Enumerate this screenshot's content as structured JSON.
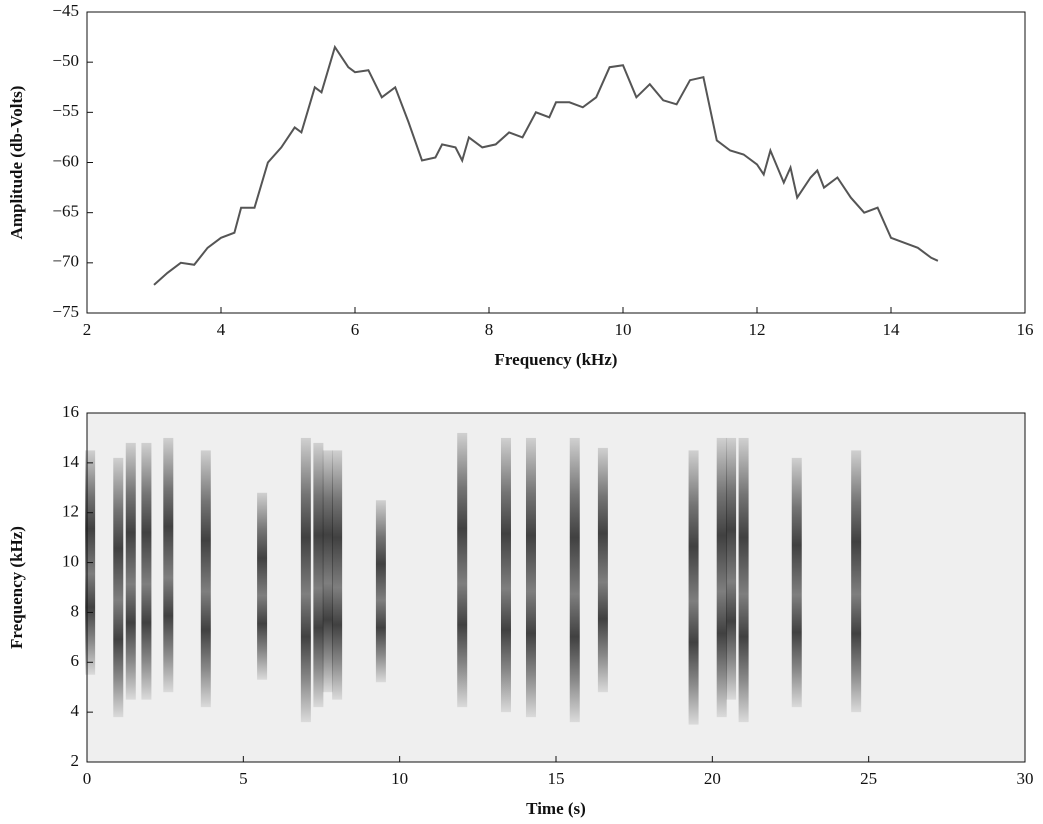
{
  "chart_data": [
    {
      "type": "line",
      "xlabel": "Frequency (kHz)",
      "ylabel": "Amplitude (db-Volts)",
      "color": "#555555",
      "x": [
        3.0,
        3.2,
        3.4,
        3.6,
        3.8,
        4.0,
        4.2,
        4.3,
        4.5,
        4.7,
        4.9,
        5.1,
        5.2,
        5.4,
        5.5,
        5.7,
        5.9,
        6.0,
        6.2,
        6.4,
        6.6,
        6.8,
        7.0,
        7.2,
        7.3,
        7.5,
        7.6,
        7.7,
        7.9,
        8.1,
        8.3,
        8.5,
        8.7,
        8.9,
        9.0,
        9.2,
        9.4,
        9.6,
        9.8,
        10.0,
        10.2,
        10.4,
        10.6,
        10.8,
        11.0,
        11.2,
        11.4,
        11.6,
        11.8,
        12.0,
        12.1,
        12.2,
        12.4,
        12.5,
        12.6,
        12.8,
        12.9,
        13.0,
        13.2,
        13.4,
        13.6,
        13.8,
        14.0,
        14.2,
        14.4,
        14.6,
        14.7
      ],
      "values": [
        -72.2,
        -71,
        -70,
        -70.2,
        -68.5,
        -67.5,
        -67,
        -64.5,
        -64.5,
        -60,
        -58.5,
        -56.5,
        -57,
        -52.5,
        -53,
        -48.5,
        -50.5,
        -51,
        -50.8,
        -53.5,
        -52.5,
        -56,
        -59.8,
        -59.5,
        -58.2,
        -58.5,
        -59.8,
        -57.5,
        -58.5,
        -58.2,
        -57,
        -57.5,
        -55,
        -55.5,
        -54,
        -54,
        -54.5,
        -53.5,
        -50.5,
        -50.3,
        -53.5,
        -52.2,
        -53.8,
        -54.2,
        -51.8,
        -51.5,
        -57.8,
        -58.8,
        -59.2,
        -60.2,
        -61.2,
        -58.8,
        -62,
        -60.5,
        -63.5,
        -61.5,
        -60.8,
        -62.5,
        -61.5,
        -63.5,
        -65,
        -64.5,
        -67.5,
        -68,
        -68.5,
        -69.5,
        -69.8
      ],
      "xlim": [
        2,
        16
      ],
      "ylim": [
        -75,
        -45
      ],
      "xticks": [
        2,
        4,
        6,
        8,
        10,
        12,
        14,
        16
      ],
      "yticks": [
        {
          "value": -75,
          "label": "−75"
        },
        {
          "value": -70,
          "label": "−70"
        },
        {
          "value": -65,
          "label": "−65"
        },
        {
          "value": -60,
          "label": "−60"
        },
        {
          "value": -55,
          "label": "−55"
        },
        {
          "value": -50,
          "label": "−50"
        },
        {
          "value": -45,
          "label": "−45"
        }
      ]
    },
    {
      "type": "spectrogram",
      "xlabel": "Time (s)",
      "ylabel": "Frequency (kHz)",
      "color": "#222222",
      "x": [
        0.1,
        1.0,
        1.4,
        1.9,
        2.6,
        3.8,
        5.6,
        7.0,
        7.4,
        7.7,
        8.0,
        9.4,
        12.0,
        13.4,
        14.2,
        15.6,
        16.5,
        19.4,
        20.3,
        20.6,
        21.0,
        22.7,
        24.6
      ],
      "ylow": [
        5.5,
        3.8,
        4.5,
        4.5,
        4.8,
        4.2,
        5.3,
        3.6,
        4.2,
        4.8,
        4.5,
        5.2,
        4.2,
        4.0,
        3.8,
        3.6,
        4.8,
        3.5,
        3.8,
        4.5,
        3.6,
        4.2,
        4.0
      ],
      "yhigh": [
        14.5,
        14.2,
        14.8,
        14.8,
        15.0,
        14.5,
        12.8,
        15.0,
        14.8,
        14.5,
        14.5,
        12.5,
        15.2,
        15.0,
        15.0,
        15.0,
        14.6,
        14.5,
        15.0,
        15.0,
        15.0,
        14.2,
        14.5
      ],
      "xlim": [
        0,
        30
      ],
      "ylim": [
        2,
        16
      ],
      "xticks": [
        0,
        5,
        10,
        15,
        20,
        25,
        30
      ],
      "yticks": [
        2,
        4,
        6,
        8,
        10,
        12,
        14,
        16
      ]
    }
  ]
}
